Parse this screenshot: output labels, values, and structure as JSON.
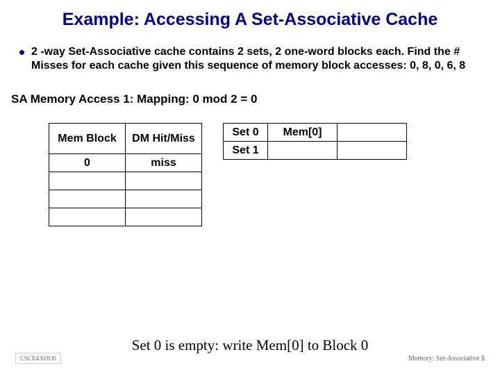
{
  "title": "Example: Accessing A Set-Associative Cache",
  "bullet": "2 -way Set-Associative cache contains 2 sets, 2 one-word blocks each. Find the # Misses for each cache given this sequence of memory block accesses: 0, 8, 0, 6, 8",
  "subhead": "SA Memory Access 1:  Mapping: 0 mod 2 = 0",
  "left_table": {
    "headers": [
      "Mem Block",
      "DM Hit/Miss"
    ],
    "rows": [
      [
        "0",
        "miss"
      ],
      [
        "",
        ""
      ],
      [
        "",
        ""
      ],
      [
        "",
        ""
      ]
    ]
  },
  "right_table": {
    "rows": [
      [
        "Set 0",
        "Mem[0]",
        ""
      ],
      [
        "Set 1",
        "",
        ""
      ]
    ]
  },
  "caption": "Set 0 is empty: write Mem[0] to Block 0",
  "footer_left": "CSCE430/830",
  "footer_right": "Memory: Set-Associative $",
  "colors": {
    "accent": "#000099"
  }
}
